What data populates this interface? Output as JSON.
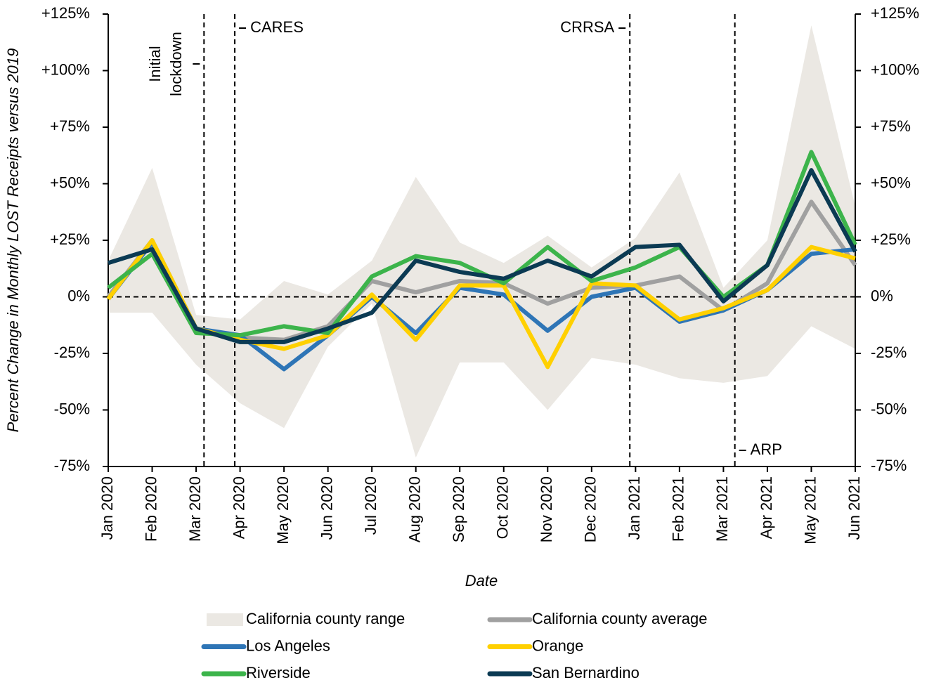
{
  "chart_data": {
    "type": "line",
    "y_title": "Percent Change in Monthly LOST Receipts versus 2019",
    "x_title": "Date",
    "categories": [
      "Jan 2020",
      "Feb 2020",
      "Mar 2020",
      "Apr 2020",
      "May 2020",
      "Jun 2020",
      "Jul 2020",
      "Aug 2020",
      "Sep 2020",
      "Oct 2020",
      "Nov 2020",
      "Dec 2020",
      "Jan 2021",
      "Feb 2021",
      "Mar 2021",
      "Apr 2021",
      "May 2021",
      "Jun 2021"
    ],
    "ylim": [
      -75,
      125
    ],
    "yticks": [
      {
        "value": -75,
        "label": "-75%"
      },
      {
        "value": -50,
        "label": "-50%"
      },
      {
        "value": -25,
        "label": "-25%"
      },
      {
        "value": 0,
        "label": "0%"
      },
      {
        "value": 25,
        "label": "+25%"
      },
      {
        "value": 50,
        "label": "+50%"
      },
      {
        "value": 75,
        "label": "+75%"
      },
      {
        "value": 100,
        "label": "+100%"
      },
      {
        "value": 125,
        "label": "+125%"
      }
    ],
    "y2lim": [
      -75,
      125
    ],
    "y2ticks": [
      {
        "value": -75,
        "label": "-75%"
      },
      {
        "value": -50,
        "label": "-50%"
      },
      {
        "value": -25,
        "label": "-25%"
      },
      {
        "value": 0,
        "label": "0%"
      },
      {
        "value": 25,
        "label": "+25%"
      },
      {
        "value": 50,
        "label": "+50%"
      },
      {
        "value": 75,
        "label": "+75%"
      },
      {
        "value": 100,
        "label": "+100%"
      },
      {
        "value": 125,
        "label": "+125%"
      }
    ],
    "band": {
      "name": "California county range",
      "color": "#ebe8e3",
      "upper": [
        16,
        57,
        -8,
        -10,
        7,
        1,
        16,
        53,
        24,
        15,
        27,
        13,
        26,
        55,
        4,
        25,
        120,
        40
      ],
      "lower": [
        -7,
        -7,
        -30,
        -47,
        -58,
        -22,
        -3,
        -71,
        -29,
        -29,
        -50,
        -27,
        -30,
        -36,
        -38,
        -35,
        -13,
        -23
      ]
    },
    "series": [
      {
        "name": "California county average",
        "color": "#a0a0a0",
        "values": [
          0,
          25,
          -14,
          -18,
          -19,
          -13,
          7,
          2,
          7,
          6,
          -3,
          4,
          5,
          9,
          -6,
          6,
          42,
          14
        ]
      },
      {
        "name": "Los Angeles",
        "color": "#2e75b6",
        "values": [
          -1,
          24,
          -14,
          -17,
          -32,
          -17,
          0,
          -16,
          4,
          1,
          -15,
          0,
          4,
          -11,
          -6,
          3,
          19,
          21
        ]
      },
      {
        "name": "Orange",
        "color": "#ffd000",
        "values": [
          -1,
          25,
          -14,
          -19,
          -23,
          -17,
          1,
          -19,
          5,
          5,
          -31,
          6,
          5,
          -10,
          -5,
          3,
          22,
          17
        ]
      },
      {
        "name": "Riverside",
        "color": "#3cb44b",
        "values": [
          4,
          19,
          -16,
          -17,
          -13,
          -16,
          9,
          18,
          15,
          6,
          22,
          7,
          13,
          22,
          0,
          14,
          64,
          23
        ]
      },
      {
        "name": "San Bernardino",
        "color": "#0b3a53",
        "values": [
          15,
          21,
          -14,
          -20,
          -20,
          -14,
          -7,
          16,
          11,
          8,
          16,
          9,
          22,
          23,
          -2,
          14,
          56,
          20
        ]
      }
    ],
    "events": [
      {
        "label": [
          "Initial",
          "lockdown"
        ],
        "x": 2.18
      },
      {
        "label": [
          "CARES"
        ],
        "x": 2.88
      },
      {
        "label": [
          "CRRSA"
        ],
        "x": 11.87
      },
      {
        "label": [
          "ARP"
        ],
        "x": 14.26
      }
    ],
    "zero_line": true,
    "legend": "bottom"
  }
}
